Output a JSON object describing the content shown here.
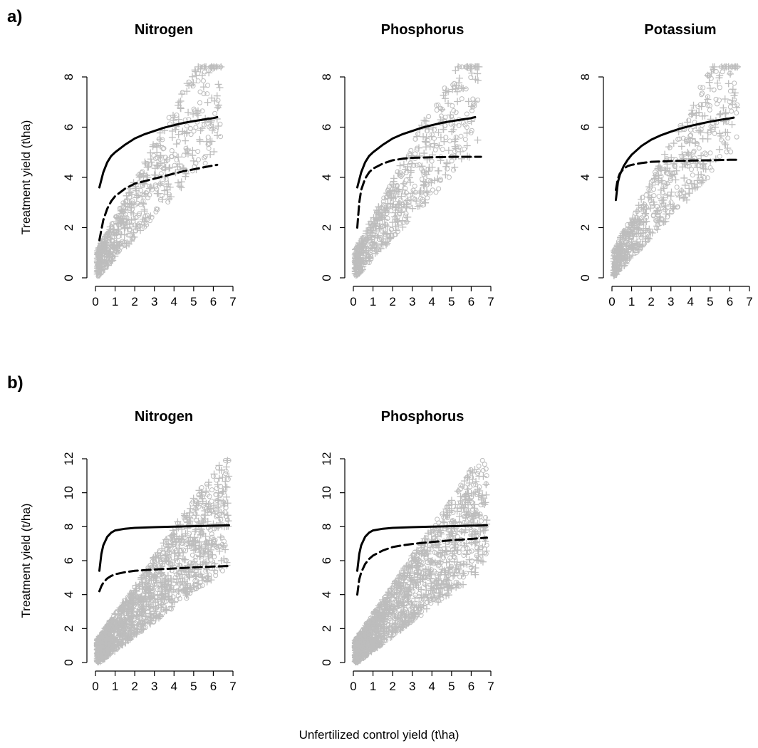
{
  "figure": {
    "row_a_tag": "a)",
    "row_b_tag": "b)",
    "x_axis_label": "Unfertilized control yield (t\\ha)"
  },
  "chart_data": [
    {
      "type": "scatter",
      "row": "a",
      "title": "Nitrogen",
      "xlabel": "",
      "ylabel": "Treatment yield (t\\ha)",
      "xlim": [
        0,
        7
      ],
      "ylim": [
        0,
        8.5
      ],
      "xticks": [
        0,
        1,
        2,
        3,
        4,
        5,
        6,
        7
      ],
      "yticks": [
        0,
        2,
        4,
        6,
        8
      ],
      "point_color": "#bdbdbd",
      "series": [
        {
          "name": "",
          "style": "solid",
          "color": "#000000",
          "x": [
            0.2,
            0.4,
            0.6,
            0.8,
            1.0,
            1.5,
            2.0,
            2.5,
            3.0,
            3.5,
            4.0,
            4.5,
            5.0,
            5.5,
            6.0,
            6.2
          ],
          "y": [
            3.6,
            4.2,
            4.6,
            4.85,
            5.0,
            5.3,
            5.55,
            5.72,
            5.85,
            5.98,
            6.08,
            6.17,
            6.24,
            6.3,
            6.36,
            6.4
          ]
        },
        {
          "name": "",
          "style": "dashed",
          "color": "#000000",
          "x": [
            0.2,
            0.4,
            0.6,
            0.8,
            1.0,
            1.5,
            2.0,
            2.5,
            3.0,
            3.5,
            4.0,
            4.5,
            5.0,
            5.5,
            6.0,
            6.2
          ],
          "y": [
            1.5,
            2.3,
            2.75,
            3.05,
            3.25,
            3.55,
            3.75,
            3.85,
            3.95,
            4.05,
            4.15,
            4.25,
            4.32,
            4.4,
            4.47,
            4.5
          ]
        }
      ]
    },
    {
      "type": "scatter",
      "row": "a",
      "title": "Phosphorus",
      "xlabel": "",
      "ylabel": "",
      "xlim": [
        0,
        7
      ],
      "ylim": [
        0,
        8.5
      ],
      "xticks": [
        0,
        1,
        2,
        3,
        4,
        5,
        6,
        7
      ],
      "yticks": [
        0,
        2,
        4,
        6,
        8
      ],
      "point_color": "#bdbdbd",
      "series": [
        {
          "name": "",
          "style": "solid",
          "color": "#000000",
          "x": [
            0.2,
            0.4,
            0.6,
            0.8,
            1.0,
            1.5,
            2.0,
            2.5,
            3.0,
            3.5,
            4.0,
            4.5,
            5.0,
            5.5,
            6.0,
            6.2
          ],
          "y": [
            3.6,
            4.2,
            4.6,
            4.85,
            5.0,
            5.3,
            5.55,
            5.72,
            5.85,
            5.98,
            6.08,
            6.17,
            6.24,
            6.3,
            6.36,
            6.4
          ]
        },
        {
          "name": "",
          "style": "dashed",
          "color": "#000000",
          "x": [
            0.2,
            0.3,
            0.4,
            0.6,
            0.8,
            1.0,
            1.5,
            2.0,
            2.5,
            3.0,
            4.0,
            5.0,
            6.0,
            6.5
          ],
          "y": [
            2.0,
            3.0,
            3.5,
            3.95,
            4.2,
            4.35,
            4.55,
            4.68,
            4.74,
            4.78,
            4.8,
            4.82,
            4.82,
            4.82
          ]
        }
      ]
    },
    {
      "type": "scatter",
      "row": "a",
      "title": "Potassium",
      "xlabel": "",
      "ylabel": "",
      "xlim": [
        0,
        7
      ],
      "ylim": [
        0,
        8.5
      ],
      "xticks": [
        0,
        1,
        2,
        3,
        4,
        5,
        6,
        7
      ],
      "yticks": [
        0,
        2,
        4,
        6,
        8
      ],
      "point_color": "#bdbdbd",
      "series": [
        {
          "name": "",
          "style": "solid",
          "color": "#000000",
          "x": [
            0.2,
            0.3,
            0.4,
            0.6,
            0.8,
            1.0,
            1.5,
            2.0,
            2.5,
            3.0,
            3.5,
            4.0,
            4.5,
            5.0,
            5.5,
            6.0,
            6.2
          ],
          "y": [
            3.1,
            3.8,
            4.1,
            4.45,
            4.7,
            4.9,
            5.25,
            5.5,
            5.68,
            5.82,
            5.95,
            6.05,
            6.14,
            6.22,
            6.29,
            6.35,
            6.38
          ]
        },
        {
          "name": "",
          "style": "dashed",
          "color": "#000000",
          "x": [
            0.2,
            0.3,
            0.4,
            0.6,
            0.8,
            1.0,
            1.5,
            2.0,
            3.0,
            4.0,
            5.0,
            6.0,
            6.5
          ],
          "y": [
            3.5,
            3.95,
            4.15,
            4.35,
            4.45,
            4.5,
            4.57,
            4.62,
            4.65,
            4.67,
            4.68,
            4.7,
            4.7
          ]
        }
      ]
    },
    {
      "type": "scatter",
      "row": "b",
      "title": "Nitrogen",
      "xlabel": "",
      "ylabel": "Treatment yield (t/ha)",
      "xlim": [
        0,
        7
      ],
      "ylim": [
        0,
        12
      ],
      "xticks": [
        0,
        1,
        2,
        3,
        4,
        5,
        6,
        7
      ],
      "yticks": [
        0,
        2,
        4,
        6,
        8,
        10,
        12
      ],
      "point_color": "#bdbdbd",
      "series": [
        {
          "name": "",
          "style": "solid",
          "color": "#000000",
          "x": [
            0.2,
            0.3,
            0.4,
            0.6,
            0.8,
            1.0,
            1.5,
            2.0,
            3.0,
            4.0,
            5.0,
            6.0,
            6.8
          ],
          "y": [
            5.4,
            6.4,
            6.9,
            7.4,
            7.65,
            7.78,
            7.88,
            7.93,
            7.97,
            8.0,
            8.03,
            8.06,
            8.08
          ]
        },
        {
          "name": "",
          "style": "dashed",
          "color": "#000000",
          "x": [
            0.2,
            0.3,
            0.4,
            0.6,
            0.8,
            1.0,
            1.5,
            2.0,
            3.0,
            4.0,
            5.0,
            6.0,
            6.8
          ],
          "y": [
            4.2,
            4.5,
            4.7,
            4.95,
            5.1,
            5.2,
            5.32,
            5.4,
            5.48,
            5.54,
            5.6,
            5.65,
            5.68
          ]
        }
      ]
    },
    {
      "type": "scatter",
      "row": "b",
      "title": "Phosphorus",
      "xlabel": "",
      "ylabel": "",
      "xlim": [
        0,
        7
      ],
      "ylim": [
        0,
        12
      ],
      "xticks": [
        0,
        1,
        2,
        3,
        4,
        5,
        6,
        7
      ],
      "yticks": [
        0,
        2,
        4,
        6,
        8,
        10,
        12
      ],
      "point_color": "#bdbdbd",
      "series": [
        {
          "name": "",
          "style": "solid",
          "color": "#000000",
          "x": [
            0.2,
            0.3,
            0.4,
            0.6,
            0.8,
            1.0,
            1.5,
            2.0,
            3.0,
            4.0,
            5.0,
            6.0,
            6.8
          ],
          "y": [
            5.4,
            6.4,
            6.9,
            7.4,
            7.65,
            7.78,
            7.88,
            7.93,
            7.97,
            8.0,
            8.03,
            8.06,
            8.08
          ]
        },
        {
          "name": "",
          "style": "dashed",
          "color": "#000000",
          "x": [
            0.2,
            0.3,
            0.4,
            0.6,
            0.8,
            1.0,
            1.5,
            2.0,
            2.5,
            3.0,
            4.0,
            5.0,
            6.0,
            6.8
          ],
          "y": [
            4.0,
            4.9,
            5.3,
            5.8,
            6.1,
            6.3,
            6.6,
            6.8,
            6.9,
            6.98,
            7.1,
            7.2,
            7.28,
            7.35
          ]
        }
      ]
    }
  ]
}
